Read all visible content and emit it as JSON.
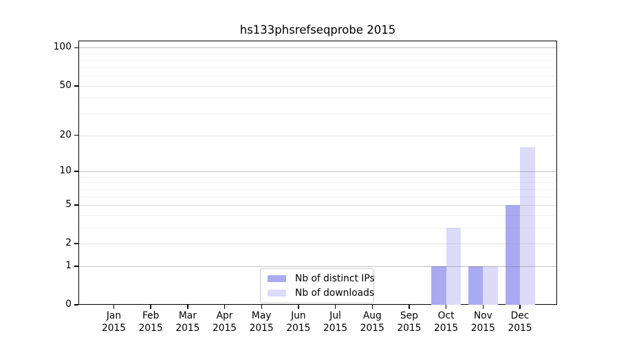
{
  "chart_data": {
    "type": "bar",
    "title": "hs133phsrefseqprobe 2015",
    "categories": [
      "Jan",
      "Feb",
      "Mar",
      "Apr",
      "May",
      "Jun",
      "Jul",
      "Aug",
      "Sep",
      "Oct",
      "Nov",
      "Dec"
    ],
    "year": "2015",
    "series": [
      {
        "name": "Nb of distinct IPs",
        "color": "#aaaaf2",
        "values": [
          0,
          0,
          0,
          0,
          0,
          0,
          0,
          0,
          0,
          1,
          1,
          5
        ]
      },
      {
        "name": "Nb of downloads",
        "color": "#dcdcf8",
        "values": [
          0,
          0,
          0,
          0,
          0,
          0,
          0,
          0,
          0,
          3,
          1,
          16
        ]
      }
    ],
    "y_axis": {
      "scale": "log1p",
      "ticks": [
        100,
        50,
        20,
        10,
        5,
        2,
        1,
        0
      ],
      "major_gridlines": [
        100,
        10,
        1
      ],
      "minor_gridlines": [
        90,
        80,
        70,
        60,
        40,
        30,
        9,
        8,
        7,
        6,
        4,
        3
      ],
      "range": [
        0,
        115
      ]
    },
    "x_axis": {
      "label_line2": "2015"
    },
    "grid": true,
    "legend": {
      "position": "inside-bottom-center",
      "entries": [
        "Nb of distinct IPs",
        "Nb of downloads"
      ]
    }
  }
}
